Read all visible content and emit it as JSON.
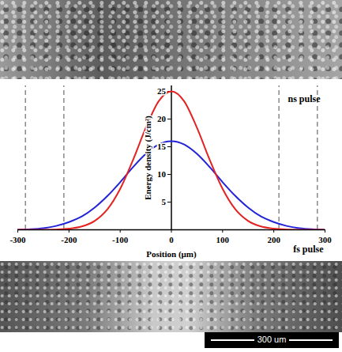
{
  "chart_data": {
    "type": "line",
    "x_label": "Position (μm)",
    "y_label": "Energy density (J/cm²)",
    "x": [
      -300,
      -275,
      -250,
      -225,
      -200,
      -175,
      -150,
      -125,
      -100,
      -75,
      -50,
      -25,
      0,
      25,
      50,
      75,
      100,
      125,
      150,
      175,
      200,
      225,
      250,
      275,
      300
    ],
    "series": [
      {
        "name": "ns pulse",
        "color": "#2323d8",
        "values": [
          0.0,
          0.1,
          0.3,
          0.7,
          1.4,
          2.4,
          4.0,
          6.1,
          8.6,
          11.3,
          13.7,
          15.4,
          16,
          15.4,
          13.7,
          11.3,
          8.6,
          6.1,
          4.0,
          2.4,
          1.4,
          0.7,
          0.3,
          0.1,
          0.0
        ]
      },
      {
        "name": "fs pulse",
        "color": "#e32222",
        "values": [
          0,
          0,
          0,
          0.05,
          0.2,
          0.6,
          1.6,
          3.7,
          7.4,
          12.6,
          18.4,
          23.2,
          25,
          23.2,
          18.4,
          12.6,
          7.4,
          3.7,
          1.6,
          0.6,
          0.2,
          0.05,
          0,
          0,
          0
        ]
      }
    ],
    "xlim": [
      -300,
      300
    ],
    "ylim": [
      0,
      26
    ],
    "xticks": [
      -300,
      -200,
      -100,
      0,
      100,
      200,
      300
    ],
    "yticks": [
      5,
      10,
      15,
      20,
      25
    ],
    "reference_lines": [
      -285,
      -210,
      210,
      285
    ]
  },
  "scale_bar": {
    "label": "300 um"
  }
}
